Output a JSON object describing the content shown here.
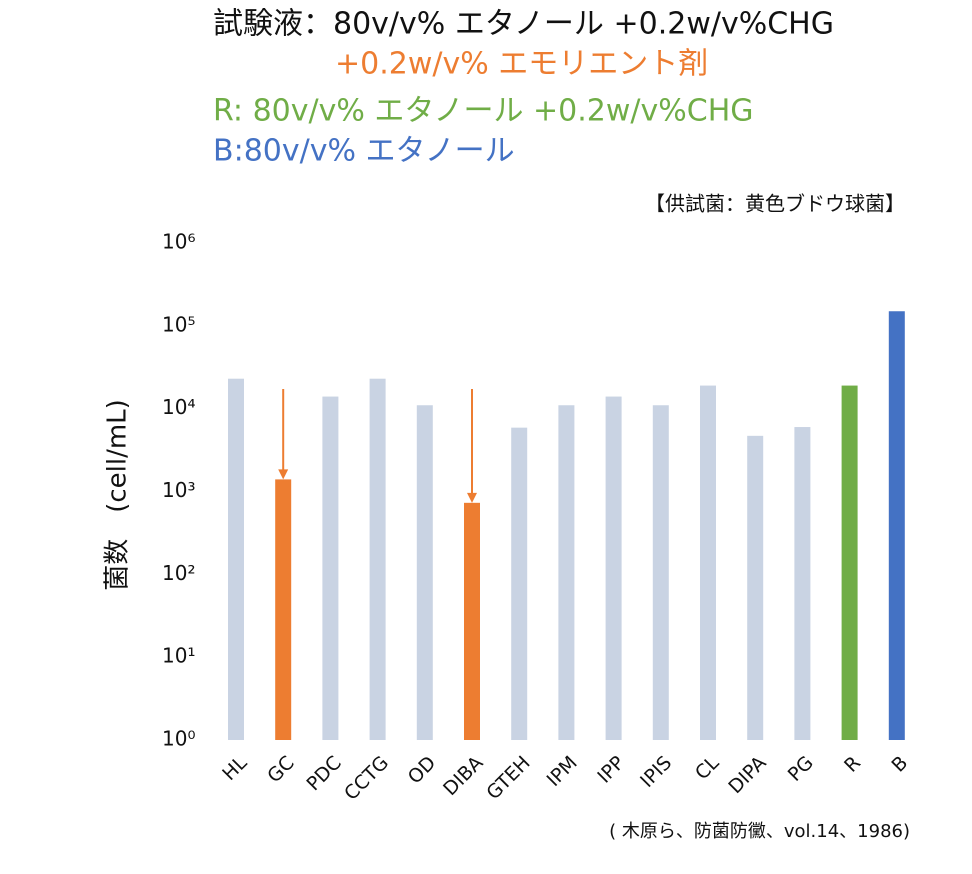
{
  "chart_data": {
    "type": "bar",
    "title_lines": [
      {
        "text": "試験液：80v/v% エタノール +0.2w/v%CHG",
        "color": "#111111"
      },
      {
        "text": "+0.2w/v% エモリエント剤",
        "color": "#ed7d31"
      },
      {
        "text": "R: 80v/v% エタノール +0.2w/v%CHG",
        "color": "#70ad47"
      },
      {
        "text": "B:80v/v% エタノール",
        "color": "#4472c4"
      }
    ],
    "subtitle": "【供試菌：黄色ブドウ球菌】",
    "source": "( 木原ら、防菌防黴、vol.14、1986)",
    "y_label": "菌数　(cell/mL)",
    "categories": [
      "HL",
      "GC",
      "PDC",
      "CCTG",
      "OD",
      "DIBA",
      "GTEH",
      "IPM",
      "IPP",
      "IPIS",
      "CL",
      "DIPA",
      "PG",
      "R",
      "B"
    ],
    "values": [
      23000,
      1400,
      14000,
      23000,
      11000,
      730,
      5900,
      11000,
      14000,
      11000,
      19000,
      4700,
      6000,
      19000,
      150000
    ],
    "colors": [
      "#c9d3e3",
      "#ed7d31",
      "#c9d3e3",
      "#c9d3e3",
      "#c9d3e3",
      "#ed7d31",
      "#c9d3e3",
      "#c9d3e3",
      "#c9d3e3",
      "#c9d3e3",
      "#c9d3e3",
      "#c9d3e3",
      "#c9d3e3",
      "#70ad47",
      "#4472c4"
    ],
    "log_scale": true,
    "ylim": [
      1,
      1000000
    ],
    "yticks": [
      {
        "value": 1,
        "label": "10⁰"
      },
      {
        "value": 10,
        "label": "10¹"
      },
      {
        "value": 100,
        "label": "10²"
      },
      {
        "value": 1000,
        "label": "10³"
      },
      {
        "value": 10000,
        "label": "10⁴"
      },
      {
        "value": 100000,
        "label": "10⁵"
      },
      {
        "value": 1000000,
        "label": "10⁶"
      }
    ],
    "grid": false
  }
}
